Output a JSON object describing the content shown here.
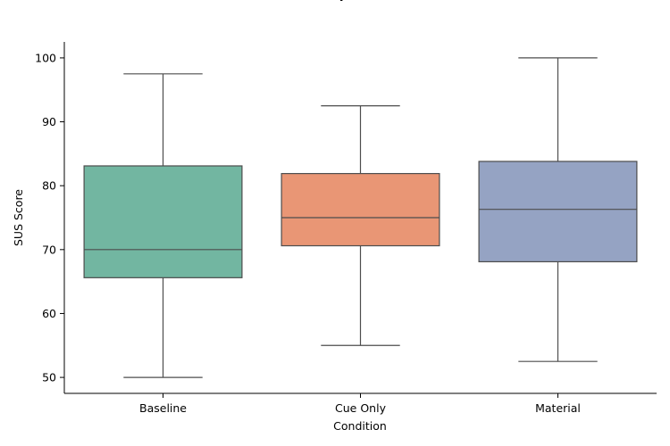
{
  "chart_data": {
    "type": "box",
    "title": "",
    "title_partial": "y",
    "xlabel": "Condition",
    "ylabel": "SUS Score",
    "ylim": [
      47.5,
      102.5
    ],
    "yticks": [
      50,
      60,
      70,
      80,
      90,
      100
    ],
    "grid": false,
    "categories": [
      "Baseline",
      "Cue Only",
      "Material"
    ],
    "colors": [
      "#72b6a1",
      "#e99675",
      "#95a3c3"
    ],
    "edge_color": "#4d4d4d",
    "boxes": [
      {
        "category": "Baseline",
        "whisker_low": 50,
        "q1": 65.6,
        "median": 70,
        "q3": 83.1,
        "whisker_high": 97.5
      },
      {
        "category": "Cue Only",
        "whisker_low": 55,
        "q1": 70.6,
        "median": 75,
        "q3": 81.9,
        "whisker_high": 92.5
      },
      {
        "category": "Material",
        "whisker_low": 52.5,
        "q1": 68.1,
        "median": 76.3,
        "q3": 83.8,
        "whisker_high": 100
      }
    ]
  }
}
